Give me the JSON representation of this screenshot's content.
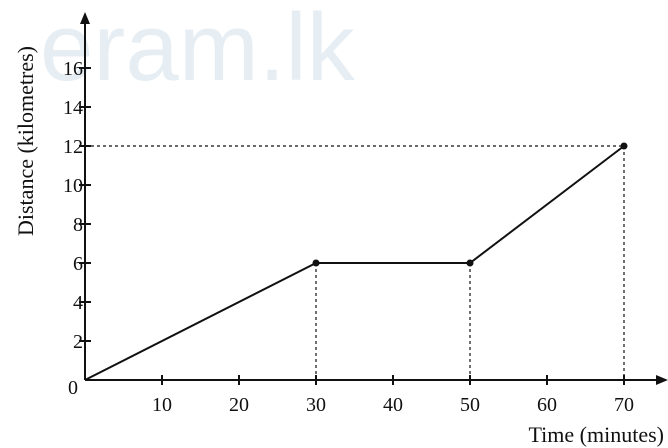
{
  "watermark": "eram.lk",
  "chart_data": {
    "type": "line",
    "title": "",
    "xlabel": "Time (minutes)",
    "ylabel": "Distance (kilometres)",
    "xlim": [
      0,
      70
    ],
    "ylim": [
      0,
      16
    ],
    "x_ticks": [
      10,
      20,
      30,
      40,
      50,
      60,
      70
    ],
    "y_ticks": [
      0,
      2,
      4,
      6,
      8,
      10,
      12,
      14,
      16
    ],
    "grid": false,
    "series": [
      {
        "x": [
          0,
          30,
          50,
          70
        ],
        "y": [
          0,
          6,
          6,
          12
        ]
      }
    ],
    "marked_points": [
      {
        "x": 30,
        "y": 6
      },
      {
        "x": 50,
        "y": 6
      },
      {
        "x": 70,
        "y": 12
      }
    ],
    "guide_lines": [
      {
        "type": "vertical",
        "x": 30,
        "y": 6
      },
      {
        "type": "vertical",
        "x": 50,
        "y": 6
      },
      {
        "type": "vertical",
        "x": 70,
        "y": 12
      },
      {
        "type": "horizontal",
        "x": 70,
        "y": 12
      }
    ]
  }
}
